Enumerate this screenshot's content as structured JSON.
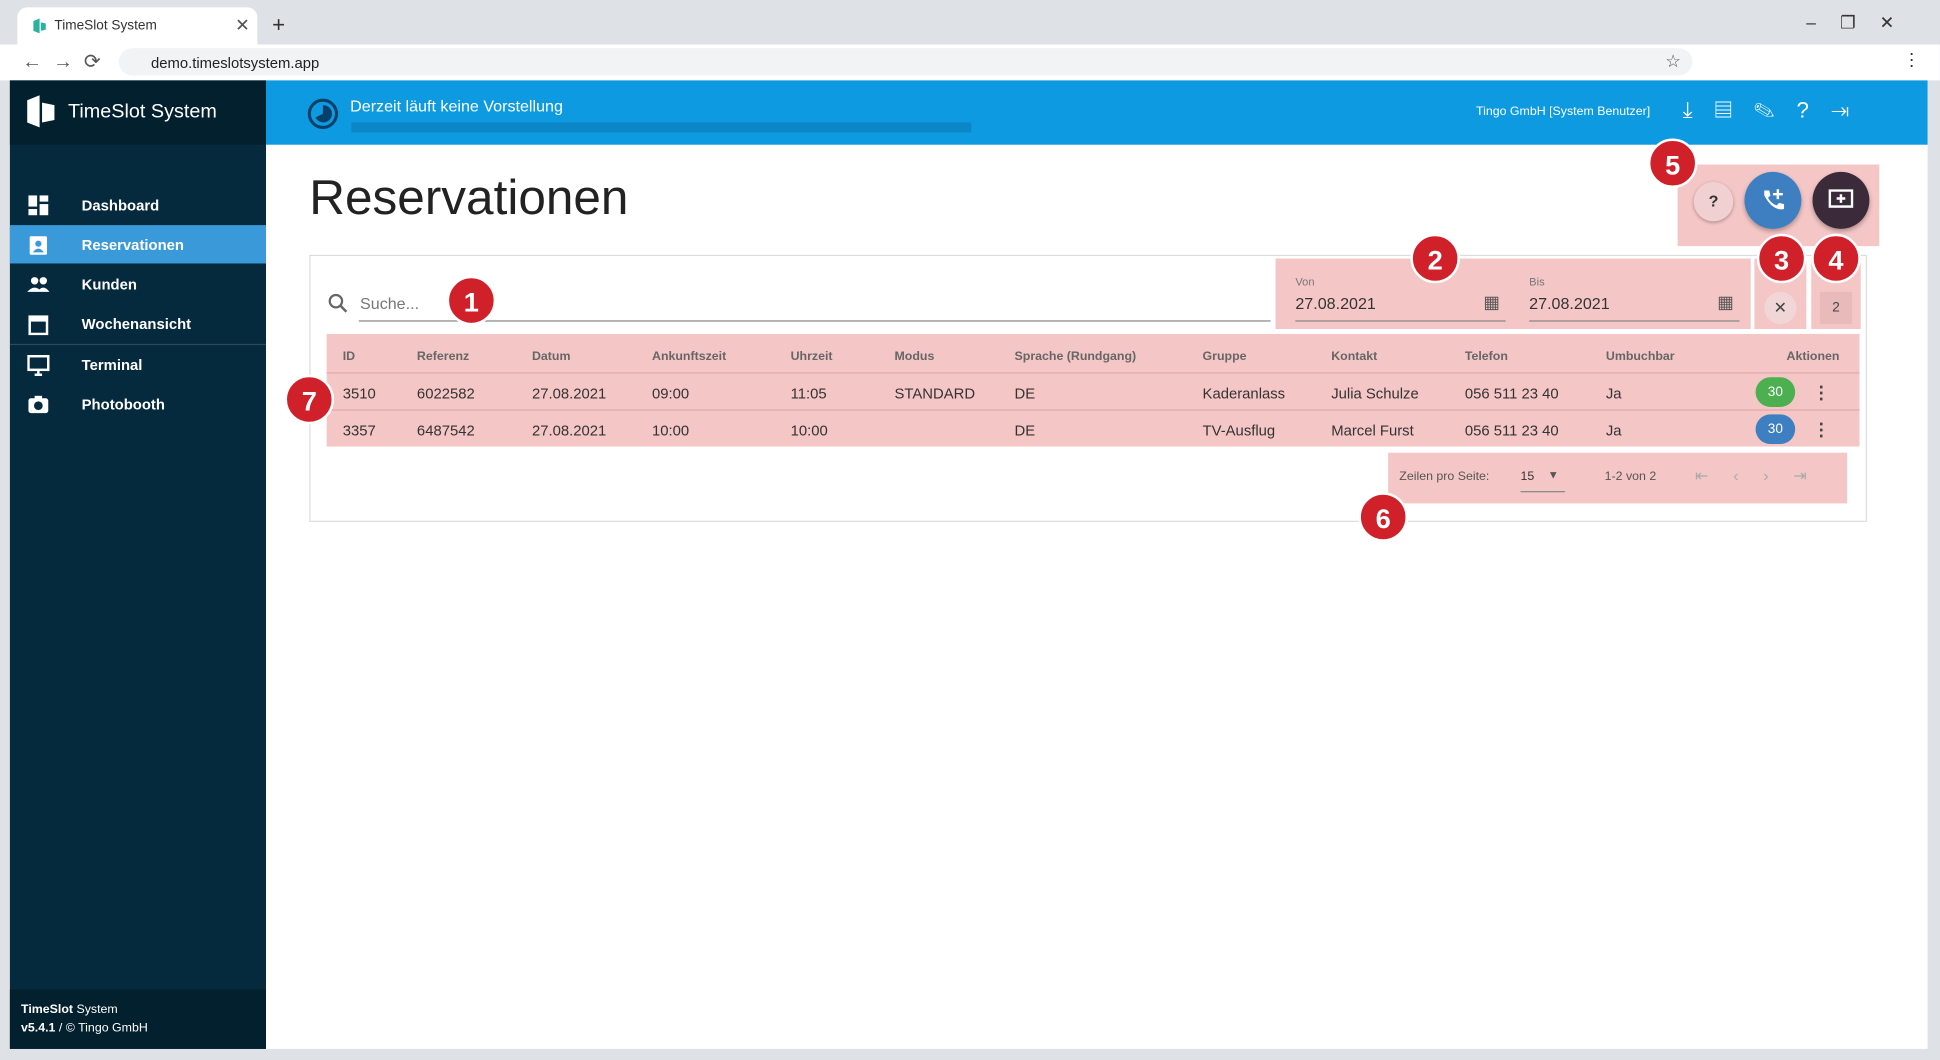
{
  "browser": {
    "tab_title": "TimeSlot System",
    "url": "demo.timeslotsystem.app"
  },
  "sidebar": {
    "brand": "TimeSlot System",
    "items": [
      "Dashboard",
      "Reservationen",
      "Kunden",
      "Wochenansicht",
      "Terminal",
      "Photobooth"
    ],
    "footer_bold": "TimeSlot",
    "footer_rest": "System",
    "version": "v5.4.1",
    "copyright": "/ © Tingo GmbH"
  },
  "header": {
    "status": "Derzeit läuft keine Vorstellung",
    "user": "Tingo GmbH [System Benutzer]"
  },
  "page": {
    "title": "Reservationen",
    "help_button": "?",
    "search_placeholder": "Suche...",
    "from_label": "Von",
    "from_date": "27.08.2021",
    "to_label": "Bis",
    "to_date": "27.08.2021",
    "count_button": "2"
  },
  "table": {
    "columns": [
      "ID",
      "Referenz",
      "Datum",
      "Ankunftszeit",
      "Uhrzeit",
      "Modus",
      "Sprache (Rundgang)",
      "Gruppe",
      "Kontakt",
      "Telefon",
      "Umbuchbar",
      "Aktionen"
    ],
    "rows": [
      [
        "3510",
        "6022582",
        "27.08.2021",
        "09:00",
        "11:05",
        "STANDARD",
        "DE",
        "Kaderanlass",
        "Julia Schulze",
        "056 511 23 40",
        "Ja",
        "30"
      ],
      [
        "3357",
        "6487542",
        "27.08.2021",
        "10:00",
        "10:00",
        null,
        "DE",
        "TV-Ausflug",
        "Marcel Furst",
        "056 511 23 40",
        "Ja",
        "30"
      ]
    ]
  },
  "pagination": {
    "rows_per_page_label": "Zeilen pro Seite:",
    "rows_per_page": "15",
    "range": "1-2 von 2"
  },
  "annotations": [
    "1",
    "2",
    "3",
    "4",
    "5",
    "6",
    "7"
  ]
}
